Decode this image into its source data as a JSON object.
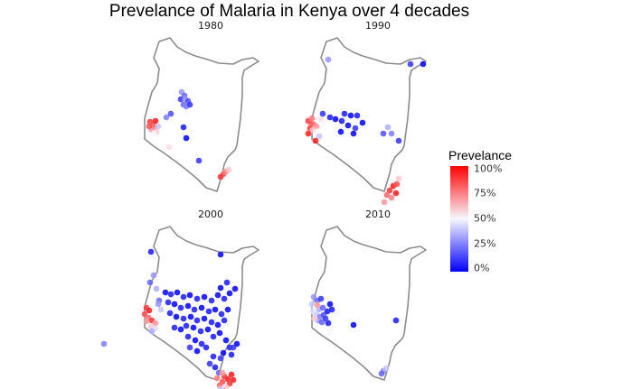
{
  "title": "Prevelance of Malaria in Kenya over 4 decades",
  "panels": [
    {
      "label": "1980",
      "points": [
        [
          53,
          66,
          0.3
        ],
        [
          56,
          70,
          0.2
        ],
        [
          52,
          74,
          0.1
        ],
        [
          57,
          74,
          0.3
        ],
        [
          60,
          76,
          0.15
        ],
        [
          55,
          80,
          0.2
        ],
        [
          58,
          82,
          0.25
        ],
        [
          62,
          80,
          0.1
        ],
        [
          18,
          99,
          0.9
        ],
        [
          21,
          102,
          0.85
        ],
        [
          23,
          105,
          0.8
        ],
        [
          20,
          108,
          0.7
        ],
        [
          25,
          110,
          0.6
        ],
        [
          22,
          112,
          0.5
        ],
        [
          27,
          104,
          0.4
        ],
        [
          24,
          98,
          0.95
        ],
        [
          17,
          104,
          0.85
        ],
        [
          36,
          94,
          0.25
        ],
        [
          41,
          90,
          0.15
        ],
        [
          55,
          105,
          0.05
        ],
        [
          58,
          117,
          0.0
        ],
        [
          39,
          127,
          0.55
        ],
        [
          72,
          142,
          0.1
        ],
        [
          99,
          157,
          0.85
        ],
        [
          102,
          154,
          0.75
        ],
        [
          96,
          160,
          0.9
        ],
        [
          105,
          152,
          0.6
        ]
      ]
    },
    {
      "label": "1990",
      "points": [
        [
          30,
          30,
          0.3
        ],
        [
          121,
          35,
          0.1
        ],
        [
          135,
          35,
          0.0
        ],
        [
          8,
          98,
          0.9
        ],
        [
          11,
          100,
          0.85
        ],
        [
          14,
          102,
          0.8
        ],
        [
          17,
          104,
          0.7
        ],
        [
          10,
          106,
          0.9
        ],
        [
          13,
          108,
          0.6
        ],
        [
          18,
          110,
          0.5
        ],
        [
          8,
          112,
          0.95
        ],
        [
          20,
          115,
          0.4
        ],
        [
          16,
          120,
          0.95
        ],
        [
          12,
          95,
          0.75
        ],
        [
          22,
          96,
          0.55
        ],
        [
          24,
          90,
          0.1
        ],
        [
          32,
          94,
          0.05
        ],
        [
          38,
          96,
          0.0
        ],
        [
          45,
          98,
          0.05
        ],
        [
          52,
          103,
          0.0
        ],
        [
          60,
          106,
          0.1
        ],
        [
          68,
          100,
          0.0
        ],
        [
          48,
          90,
          0.05
        ],
        [
          55,
          92,
          0.0
        ],
        [
          62,
          92,
          0.05
        ],
        [
          58,
          112,
          0.0
        ],
        [
          44,
          110,
          0.0
        ],
        [
          96,
          105,
          0.35
        ],
        [
          100,
          112,
          0.25
        ],
        [
          108,
          120,
          0.1
        ],
        [
          91,
          112,
          0.15
        ],
        [
          98,
          175,
          0.9
        ],
        [
          102,
          170,
          0.95
        ],
        [
          95,
          180,
          0.8
        ],
        [
          106,
          168,
          0.85
        ],
        [
          92,
          188,
          0.7
        ],
        [
          108,
          162,
          0.6
        ],
        [
          105,
          178,
          0.95
        ],
        [
          100,
          183,
          0.75
        ]
      ]
    },
    {
      "label": "2000",
      "points": [
        [
          19,
          34,
          0.05
        ],
        [
          96,
          37,
          0.0
        ],
        [
          -33,
          136,
          0.25
        ],
        [
          22,
          60,
          0.3
        ],
        [
          18,
          68,
          0.2
        ],
        [
          25,
          75,
          0.35
        ],
        [
          28,
          88,
          0.2
        ],
        [
          14,
          96,
          0.9
        ],
        [
          17,
          99,
          0.95
        ],
        [
          12,
          103,
          0.85
        ],
        [
          16,
          107,
          0.8
        ],
        [
          20,
          110,
          0.9
        ],
        [
          24,
          113,
          0.7
        ],
        [
          19,
          117,
          0.6
        ],
        [
          24,
          119,
          0.45
        ],
        [
          28,
          105,
          0.5
        ],
        [
          30,
          98,
          0.4
        ],
        [
          27,
          92,
          0.3
        ],
        [
          14,
          111,
          0.7
        ],
        [
          20,
          122,
          0.35
        ],
        [
          35,
          79,
          0.0
        ],
        [
          41,
          81,
          0.05
        ],
        [
          48,
          79,
          0.0
        ],
        [
          55,
          84,
          0.05
        ],
        [
          62,
          82,
          0.0
        ],
        [
          70,
          86,
          0.05
        ],
        [
          78,
          84,
          0.0
        ],
        [
          86,
          88,
          0.05
        ],
        [
          93,
          82,
          0.0
        ],
        [
          100,
          86,
          0.05
        ],
        [
          106,
          80,
          0.0
        ],
        [
          112,
          75,
          0.0
        ],
        [
          103,
          68,
          0.05
        ],
        [
          96,
          74,
          0.0
        ],
        [
          38,
          90,
          0.05
        ],
        [
          45,
          92,
          0.0
        ],
        [
          52,
          96,
          0.05
        ],
        [
          60,
          94,
          0.0
        ],
        [
          67,
          98,
          0.05
        ],
        [
          75,
          96,
          0.0
        ],
        [
          83,
          100,
          0.05
        ],
        [
          90,
          98,
          0.0
        ],
        [
          97,
          103,
          0.05
        ],
        [
          104,
          98,
          0.0
        ],
        [
          40,
          102,
          0.05
        ],
        [
          47,
          106,
          0.0
        ],
        [
          55,
          108,
          0.05
        ],
        [
          63,
          106,
          0.0
        ],
        [
          70,
          110,
          0.05
        ],
        [
          78,
          108,
          0.0
        ],
        [
          86,
          112,
          0.05
        ],
        [
          93,
          115,
          0.0
        ],
        [
          100,
          110,
          0.05
        ],
        [
          45,
          118,
          0.05
        ],
        [
          52,
          120,
          0.0
        ],
        [
          58,
          116,
          0.05
        ],
        [
          66,
          118,
          0.0
        ],
        [
          74,
          122,
          0.05
        ],
        [
          82,
          120,
          0.0
        ],
        [
          88,
          128,
          0.05
        ],
        [
          95,
          124,
          0.0
        ],
        [
          60,
          128,
          0.05
        ],
        [
          68,
          132,
          0.0
        ],
        [
          75,
          136,
          0.05
        ],
        [
          62,
          140,
          0.1
        ],
        [
          70,
          144,
          0.0
        ],
        [
          80,
          140,
          0.05
        ],
        [
          102,
          132,
          0.0
        ],
        [
          106,
          140,
          0.05
        ],
        [
          99,
          146,
          0.0
        ],
        [
          110,
          140,
          0.1
        ],
        [
          114,
          136,
          0.0
        ],
        [
          108,
          148,
          0.05
        ],
        [
          96,
          152,
          0.1
        ],
        [
          88,
          150,
          0.05
        ],
        [
          84,
          158,
          0.1
        ],
        [
          90,
          162,
          0.05
        ],
        [
          94,
          168,
          0.2
        ],
        [
          100,
          172,
          0.9
        ],
        [
          104,
          175,
          0.95
        ],
        [
          98,
          178,
          0.85
        ],
        [
          108,
          170,
          0.95
        ],
        [
          95,
          182,
          0.8
        ],
        [
          106,
          180,
          0.9
        ],
        [
          102,
          184,
          0.6
        ],
        [
          110,
          176,
          0.95
        ],
        [
          92,
          174,
          0.75
        ],
        [
          98,
          168,
          0.7
        ],
        [
          96,
          186,
          0.4
        ]
      ]
    },
    {
      "label": "2010",
      "points": [
        [
          14,
          84,
          0.3
        ],
        [
          18,
          88,
          0.2
        ],
        [
          22,
          86,
          0.1
        ],
        [
          12,
          92,
          0.4
        ],
        [
          16,
          96,
          0.5
        ],
        [
          20,
          98,
          0.35
        ],
        [
          24,
          96,
          0.2
        ],
        [
          13,
          100,
          0.45
        ],
        [
          17,
          104,
          0.4
        ],
        [
          21,
          106,
          0.25
        ],
        [
          25,
          104,
          0.15
        ],
        [
          19,
          110,
          0.3
        ],
        [
          23,
          112,
          0.2
        ],
        [
          27,
          108,
          0.1
        ],
        [
          15,
          108,
          0.6
        ],
        [
          18,
          93,
          0.7
        ],
        [
          29,
          100,
          0.05
        ],
        [
          32,
          92,
          0.0
        ],
        [
          34,
          98,
          0.05
        ],
        [
          30,
          113,
          0.05
        ],
        [
          58,
          115,
          0.0
        ],
        [
          105,
          110,
          0.05
        ],
        [
          91,
          166,
          0.25
        ],
        [
          94,
          163,
          0.4
        ],
        [
          89,
          169,
          0.2
        ]
      ]
    }
  ],
  "legend": {
    "title": "Prevelance",
    "ticks": [
      "100%",
      "75%",
      "50%",
      "25%",
      "0%"
    ]
  }
}
